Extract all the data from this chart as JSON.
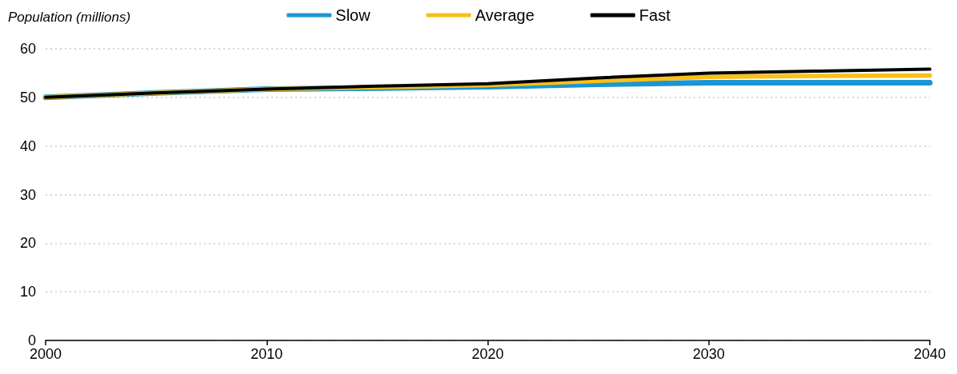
{
  "chart_data": {
    "type": "line",
    "ylabel": "Population (millions)",
    "x": [
      2000,
      2005,
      2010,
      2015,
      2020,
      2025,
      2030,
      2035,
      2040
    ],
    "series": [
      {
        "name": "Slow",
        "color": "#1a96d4",
        "values": [
          50,
          50.9,
          51.7,
          51.9,
          52.2,
          52.7,
          53.0,
          53.0,
          53.0
        ]
      },
      {
        "name": "Average",
        "color": "#fbbf17",
        "values": [
          50,
          50.9,
          51.7,
          52.1,
          52.5,
          53.4,
          54.2,
          54.4,
          54.5
        ]
      },
      {
        "name": "Fast",
        "color": "#000000",
        "values": [
          50,
          50.9,
          51.7,
          52.3,
          52.8,
          54.0,
          55.0,
          55.4,
          55.8
        ]
      }
    ],
    "xlim": [
      2000,
      2040
    ],
    "xticks": [
      2000,
      2010,
      2020,
      2030,
      2040
    ],
    "ylim": [
      0,
      60
    ],
    "yticks": [
      0,
      10,
      20,
      30,
      40,
      50,
      60
    ],
    "grid": "y",
    "legend": "top",
    "marker": "none",
    "line_style": "solid"
  }
}
